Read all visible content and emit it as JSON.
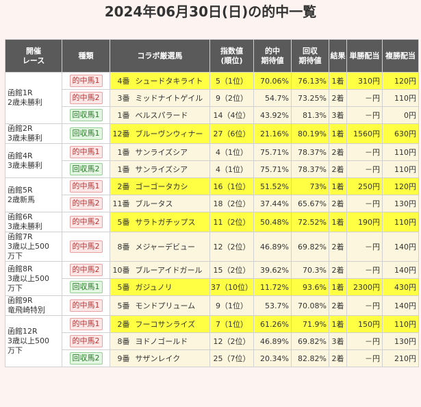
{
  "title": "2024年06月30日(日)の的中一覧",
  "headers": {
    "race": [
      "開催",
      "レース"
    ],
    "type": "種類",
    "horse": "コラボ厳選馬",
    "index": [
      "指数値",
      "(順位)"
    ],
    "hit_exp": [
      "的中",
      "期待値"
    ],
    "rec_exp": [
      "回収",
      "期待値"
    ],
    "result": "結果",
    "win_pay": "単勝配当",
    "place_pay": "複勝配当"
  },
  "races": [
    {
      "race": [
        "函館1R",
        "2歳未勝利"
      ],
      "rows": [
        {
          "type": "的中馬1",
          "kind": "hit",
          "highlight": true,
          "num": "4番",
          "horse": "シュードタキライト",
          "index": "5（1位）",
          "hit_exp": "70.06%",
          "rec_exp": "76.13%",
          "result": "1着",
          "win": "310円",
          "place": "120円"
        },
        {
          "type": "的中馬2",
          "kind": "hit",
          "highlight": false,
          "num": "3番",
          "horse": "ミッドナイトゲイル",
          "index": "9（2位）",
          "hit_exp": "54.7%",
          "rec_exp": "73.25%",
          "result": "2着",
          "win": "－円",
          "place": "110円"
        },
        {
          "type": "回収馬1",
          "kind": "rec",
          "highlight": false,
          "num": "1番",
          "horse": "ベルスパラード",
          "index": "14（4位）",
          "hit_exp": "43.92%",
          "rec_exp": "81.3%",
          "result": "3着",
          "win": "－円",
          "place": "0円"
        }
      ]
    },
    {
      "race": [
        "函館2R",
        "3歳未勝利"
      ],
      "rows": [
        {
          "type": "回収馬1",
          "kind": "rec",
          "highlight": true,
          "num": "12番",
          "horse": "ブルーヴンウィナー",
          "index": "27（6位）",
          "hit_exp": "21.16%",
          "rec_exp": "80.19%",
          "result": "1着",
          "win": "1560円",
          "place": "630円"
        }
      ]
    },
    {
      "race": [
        "函館4R",
        "3歳未勝利"
      ],
      "rows": [
        {
          "type": "的中馬1",
          "kind": "hit",
          "highlight": false,
          "num": "1番",
          "horse": "サンライズシア",
          "index": "4（1位）",
          "hit_exp": "75.71%",
          "rec_exp": "78.37%",
          "result": "2着",
          "win": "－円",
          "place": "110円"
        },
        {
          "type": "回収馬2",
          "kind": "rec",
          "highlight": false,
          "num": "1番",
          "horse": "サンライズシア",
          "index": "4（1位）",
          "hit_exp": "75.71%",
          "rec_exp": "78.37%",
          "result": "2着",
          "win": "－円",
          "place": "110円"
        }
      ]
    },
    {
      "race": [
        "函館5R",
        "2歳新馬"
      ],
      "rows": [
        {
          "type": "的中馬1",
          "kind": "hit",
          "highlight": true,
          "num": "2番",
          "horse": "ゴーゴータカシ",
          "index": "16（1位）",
          "hit_exp": "51.52%",
          "rec_exp": "73%",
          "result": "1着",
          "win": "250円",
          "place": "120円"
        },
        {
          "type": "的中馬2",
          "kind": "hit",
          "highlight": false,
          "num": "11番",
          "horse": "ブルータス",
          "index": "18（2位）",
          "hit_exp": "37.44%",
          "rec_exp": "65.67%",
          "result": "2着",
          "win": "－円",
          "place": "130円"
        }
      ]
    },
    {
      "race": [
        "函館6R",
        "3歳未勝利"
      ],
      "rows": [
        {
          "type": "的中馬2",
          "kind": "hit",
          "highlight": true,
          "num": "5番",
          "horse": "サラトガチップス",
          "index": "11（2位）",
          "hit_exp": "50.48%",
          "rec_exp": "72.52%",
          "result": "1着",
          "win": "190円",
          "place": "110円"
        }
      ]
    },
    {
      "race": [
        "函館7R",
        "3歳以上500",
        "万下"
      ],
      "rows": [
        {
          "type": "的中馬2",
          "kind": "hit",
          "highlight": false,
          "num": "8番",
          "horse": "メジャーデビュー",
          "index": "12（2位）",
          "hit_exp": "46.89%",
          "rec_exp": "69.82%",
          "result": "2着",
          "win": "－円",
          "place": "140円"
        }
      ]
    },
    {
      "race": [
        "函館8R",
        "3歳以上500",
        "万下"
      ],
      "rows": [
        {
          "type": "的中馬2",
          "kind": "hit",
          "highlight": false,
          "num": "10番",
          "horse": "ブルーアイドガール",
          "index": "15（2位）",
          "hit_exp": "39.62%",
          "rec_exp": "70.3%",
          "result": "2着",
          "win": "－円",
          "place": "140円"
        },
        {
          "type": "回収馬1",
          "kind": "rec",
          "highlight": true,
          "num": "5番",
          "horse": "ガジュノリ",
          "index": "37（10位）",
          "hit_exp": "11.72%",
          "rec_exp": "93.6%",
          "result": "1着",
          "win": "2300円",
          "place": "430円"
        }
      ]
    },
    {
      "race": [
        "函館9R",
        "竜飛崎特別"
      ],
      "rows": [
        {
          "type": "的中馬1",
          "kind": "hit",
          "highlight": false,
          "num": "5番",
          "horse": "モンドプリューム",
          "index": "9（1位）",
          "hit_exp": "53.7%",
          "rec_exp": "70.08%",
          "result": "2着",
          "win": "－円",
          "place": "140円"
        }
      ]
    },
    {
      "race": [
        "函館12R",
        "3歳以上500",
        "万下"
      ],
      "rows": [
        {
          "type": "的中馬1",
          "kind": "hit",
          "highlight": true,
          "num": "2番",
          "horse": "フーコサンライズ",
          "index": "7（1位）",
          "hit_exp": "61.26%",
          "rec_exp": "71.9%",
          "result": "1着",
          "win": "150円",
          "place": "110円"
        },
        {
          "type": "的中馬2",
          "kind": "hit",
          "highlight": false,
          "num": "8番",
          "horse": "ヨドノゴールド",
          "index": "12（2位）",
          "hit_exp": "46.89%",
          "rec_exp": "69.82%",
          "result": "3着",
          "win": "－円",
          "place": "130円"
        },
        {
          "type": "回収馬2",
          "kind": "rec",
          "highlight": false,
          "num": "9番",
          "horse": "サザンレイク",
          "index": "25（7位）",
          "hit_exp": "20.34%",
          "rec_exp": "82.82%",
          "result": "2着",
          "win": "－円",
          "place": "210円"
        }
      ]
    }
  ]
}
